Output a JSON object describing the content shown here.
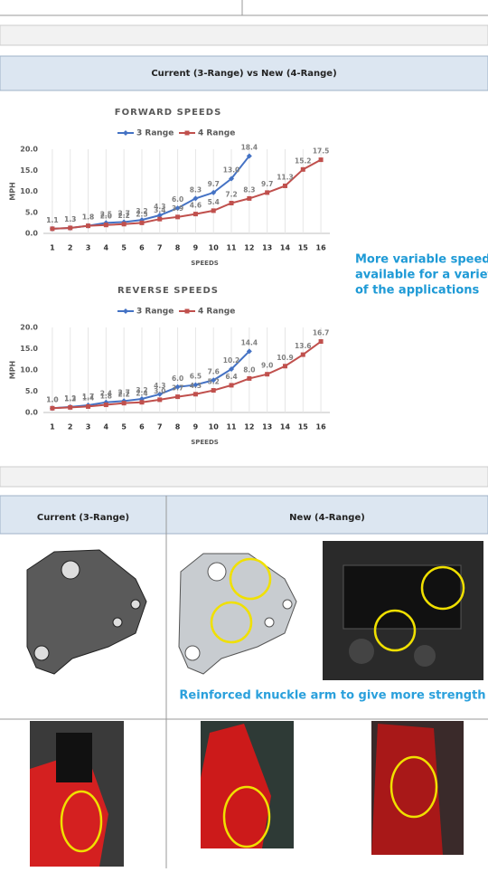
{
  "header": {
    "title": "Current (3-Range)  vs  New (4-Range)"
  },
  "chart_data": [
    {
      "type": "line",
      "title": "FORWARD SPEEDS",
      "x_label": "SPEEDS",
      "y_label": "MPH",
      "x": [
        1,
        2,
        3,
        4,
        5,
        6,
        7,
        8,
        9,
        10,
        11,
        12,
        13,
        14,
        15,
        16
      ],
      "series": [
        {
          "name": "3 Range",
          "color": "#4472c4",
          "values": [
            1.1,
            1.3,
            1.8,
            2.5,
            2.7,
            3.2,
            4.3,
            6.0,
            8.3,
            9.7,
            13.0,
            18.4,
            null,
            null,
            null,
            null
          ],
          "value_labels": [
            "1.1",
            "1.3",
            "1.8",
            "2.5",
            "2.7",
            "3.2",
            "4.3",
            "6.0",
            "8.3",
            "9.7",
            "13.0",
            "18.4",
            null,
            null,
            null,
            null
          ]
        },
        {
          "name": "4 Range",
          "color": "#c0504d",
          "values": [
            1.1,
            1.3,
            1.8,
            2.0,
            2.2,
            2.5,
            3.4,
            3.9,
            4.6,
            5.4,
            7.2,
            8.3,
            9.7,
            11.3,
            15.2,
            17.5
          ],
          "value_labels": [
            "1.1",
            "1.3",
            "1.8",
            "2.0",
            "2.2",
            "2.5",
            "3.4",
            "3.9",
            "4.6",
            "5.4",
            "7.2",
            "8.3",
            "9.7",
            "11.3",
            "15.2",
            "17.5"
          ]
        }
      ],
      "ylim": [
        0,
        20
      ],
      "yticks": [
        {
          "value": 0,
          "label": "0.0"
        },
        {
          "value": 5,
          "label": "5.0"
        },
        {
          "value": 10,
          "label": "10.0"
        },
        {
          "value": 15,
          "label": "15.0"
        },
        {
          "value": 20,
          "label": "20.0"
        }
      ],
      "grid": "x",
      "legend": "top"
    },
    {
      "type": "line",
      "title": "REVERSE SPEEDS",
      "x_label": "SPEEDS",
      "y_label": "MPH",
      "x": [
        1,
        2,
        3,
        4,
        5,
        6,
        7,
        8,
        9,
        10,
        11,
        12,
        13,
        14,
        15,
        16
      ],
      "series": [
        {
          "name": "3 Range",
          "color": "#4472c4",
          "values": [
            1.0,
            1.3,
            1.7,
            2.4,
            2.7,
            3.2,
            4.3,
            6.0,
            6.5,
            7.6,
            10.2,
            14.4,
            null,
            null,
            null,
            null
          ],
          "value_labels": [
            "1.0",
            "1.3",
            "1.7",
            "2.4",
            "2.7",
            "3.2",
            "4.3",
            "6.0",
            "6.5",
            "7.6",
            "10.2",
            "14.4",
            null,
            null,
            null,
            null
          ]
        },
        {
          "name": "4 Range",
          "color": "#c0504d",
          "values": [
            1.0,
            1.2,
            1.4,
            1.8,
            2.2,
            2.4,
            3.0,
            3.7,
            4.3,
            5.2,
            6.4,
            8.0,
            9.0,
            10.9,
            13.6,
            16.7
          ],
          "value_labels": [
            "1.0",
            "1.2",
            "1.4",
            "1.8",
            "2.2",
            "2.4",
            "3.0",
            "3.7",
            "4.3",
            "5.2",
            "6.4",
            "8.0",
            "9.0",
            "10.9",
            "13.6",
            "16.7"
          ]
        }
      ],
      "ylim": [
        0,
        20
      ],
      "yticks": [
        {
          "value": 0,
          "label": "0.0"
        },
        {
          "value": 5,
          "label": "5.0"
        },
        {
          "value": 10,
          "label": "10.0"
        },
        {
          "value": 15,
          "label": "15.0"
        },
        {
          "value": 20,
          "label": "20.0"
        }
      ],
      "grid": "x",
      "legend": "top"
    }
  ],
  "side_text": [
    "More variable speeds",
    "available for a variety",
    "of the applications"
  ],
  "table": {
    "headers": [
      "Current (3-Range)",
      "New (4-Range)"
    ],
    "caption": "Reinforced knuckle arm to give more strength"
  }
}
